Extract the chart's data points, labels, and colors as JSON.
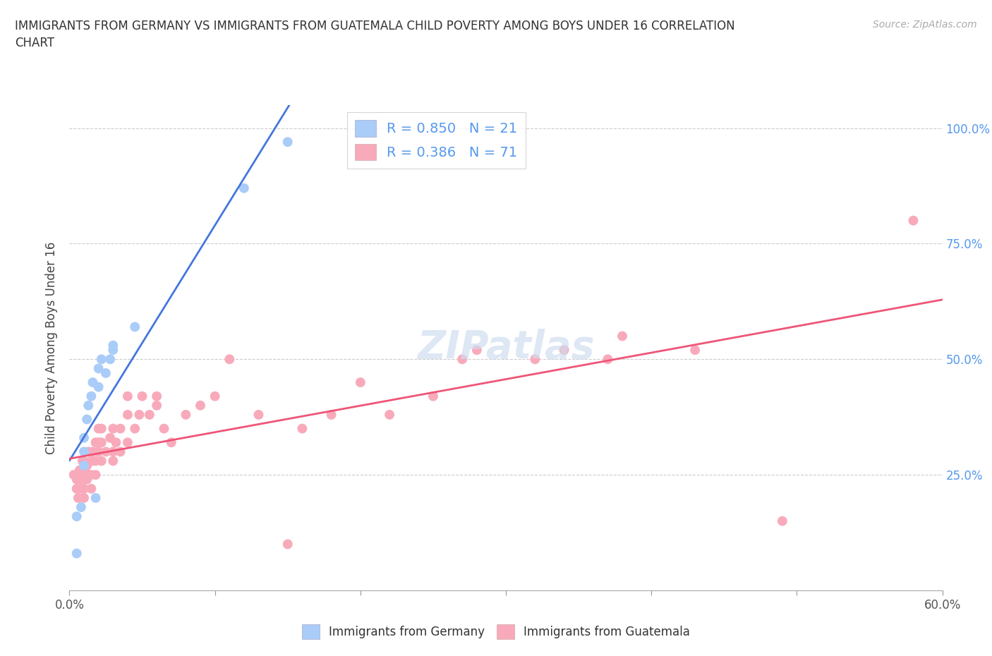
{
  "title": "IMMIGRANTS FROM GERMANY VS IMMIGRANTS FROM GUATEMALA CHILD POVERTY AMONG BOYS UNDER 16 CORRELATION\nCHART",
  "source_text": "Source: ZipAtlas.com",
  "ylabel": "Child Poverty Among Boys Under 16",
  "xlim": [
    0.0,
    0.6
  ],
  "ylim": [
    0.0,
    1.05
  ],
  "x_ticks": [
    0.0,
    0.1,
    0.2,
    0.3,
    0.4,
    0.5,
    0.6
  ],
  "x_tick_labels": [
    "0.0%",
    "",
    "",
    "",
    "",
    "",
    "60.0%"
  ],
  "y_ticks": [
    0.0,
    0.25,
    0.5,
    0.75,
    1.0
  ],
  "y_right_labels": [
    "",
    "25.0%",
    "50.0%",
    "75.0%",
    "100.0%"
  ],
  "germany_color": "#aaccf8",
  "guatemala_color": "#f8aabb",
  "germany_line_color": "#4477dd",
  "guatemala_line_color": "#ee5577",
  "germany_R": 0.85,
  "germany_N": 21,
  "guatemala_R": 0.386,
  "guatemala_N": 71,
  "watermark": "ZIPatlas",
  "germany_x": [
    0.005,
    0.005,
    0.008,
    0.01,
    0.01,
    0.01,
    0.012,
    0.013,
    0.015,
    0.016,
    0.018,
    0.02,
    0.02,
    0.022,
    0.025,
    0.028,
    0.03,
    0.03,
    0.045,
    0.12,
    0.15
  ],
  "germany_y": [
    0.08,
    0.16,
    0.18,
    0.27,
    0.3,
    0.33,
    0.37,
    0.4,
    0.42,
    0.45,
    0.2,
    0.44,
    0.48,
    0.5,
    0.47,
    0.5,
    0.52,
    0.53,
    0.57,
    0.87,
    0.97
  ],
  "guatemala_x": [
    0.003,
    0.005,
    0.005,
    0.006,
    0.007,
    0.007,
    0.008,
    0.008,
    0.009,
    0.009,
    0.01,
    0.01,
    0.01,
    0.01,
    0.01,
    0.012,
    0.012,
    0.013,
    0.013,
    0.015,
    0.015,
    0.015,
    0.016,
    0.018,
    0.018,
    0.018,
    0.02,
    0.02,
    0.02,
    0.022,
    0.022,
    0.022,
    0.025,
    0.028,
    0.03,
    0.03,
    0.03,
    0.032,
    0.035,
    0.035,
    0.04,
    0.04,
    0.04,
    0.045,
    0.048,
    0.05,
    0.055,
    0.06,
    0.06,
    0.065,
    0.07,
    0.08,
    0.09,
    0.1,
    0.11,
    0.13,
    0.15,
    0.16,
    0.18,
    0.2,
    0.22,
    0.25,
    0.27,
    0.28,
    0.32,
    0.34,
    0.37,
    0.38,
    0.43,
    0.49,
    0.58
  ],
  "guatemala_y": [
    0.25,
    0.22,
    0.24,
    0.2,
    0.24,
    0.26,
    0.22,
    0.25,
    0.24,
    0.28,
    0.2,
    0.22,
    0.24,
    0.26,
    0.28,
    0.24,
    0.27,
    0.25,
    0.3,
    0.22,
    0.25,
    0.28,
    0.3,
    0.25,
    0.28,
    0.32,
    0.3,
    0.32,
    0.35,
    0.28,
    0.32,
    0.35,
    0.3,
    0.33,
    0.28,
    0.3,
    0.35,
    0.32,
    0.3,
    0.35,
    0.32,
    0.38,
    0.42,
    0.35,
    0.38,
    0.42,
    0.38,
    0.4,
    0.42,
    0.35,
    0.32,
    0.38,
    0.4,
    0.42,
    0.5,
    0.38,
    0.1,
    0.35,
    0.38,
    0.45,
    0.38,
    0.42,
    0.5,
    0.52,
    0.5,
    0.52,
    0.5,
    0.55,
    0.52,
    0.15,
    0.8
  ]
}
